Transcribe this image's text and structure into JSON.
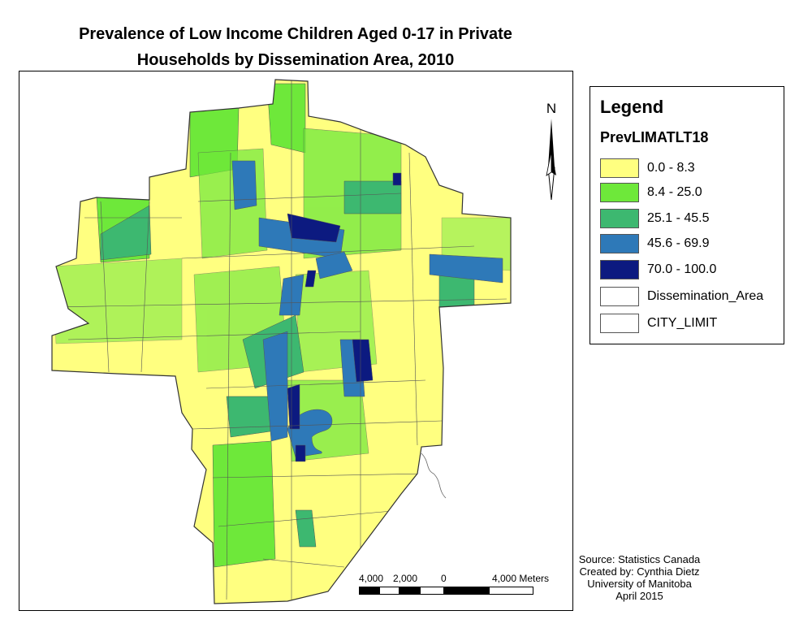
{
  "title": {
    "line1": "Prevalence of Low Income Children Aged 0-17 in Private",
    "line2": "Households by Dissemination Area, 2010"
  },
  "north_arrow": {
    "label": "N",
    "icon": "north-arrow-icon"
  },
  "scale_bar": {
    "labels": [
      "4,000",
      "2,000",
      "0",
      "4,000 Meters"
    ]
  },
  "legend": {
    "title": "Legend",
    "field": "PrevLIMATLT18",
    "classes": [
      {
        "label": "0.0 - 8.3",
        "color": "#ffff80"
      },
      {
        "label": "8.4 - 25.0",
        "color": "#6ee83a"
      },
      {
        "label": "25.1 - 45.5",
        "color": "#3db870"
      },
      {
        "label": "45.6 - 69.9",
        "color": "#2e79b8"
      },
      {
        "label": "70.0 - 100.0",
        "color": "#0c1a80"
      }
    ],
    "outlines": [
      {
        "label": "Dissemination_Area"
      },
      {
        "label": "CITY_LIMIT"
      }
    ]
  },
  "source": {
    "line1": "Source: Statistics Canada",
    "line2": "Created by: Cynthia Dietz",
    "line3": "University of Manitoba",
    "line4": "April 2015"
  }
}
